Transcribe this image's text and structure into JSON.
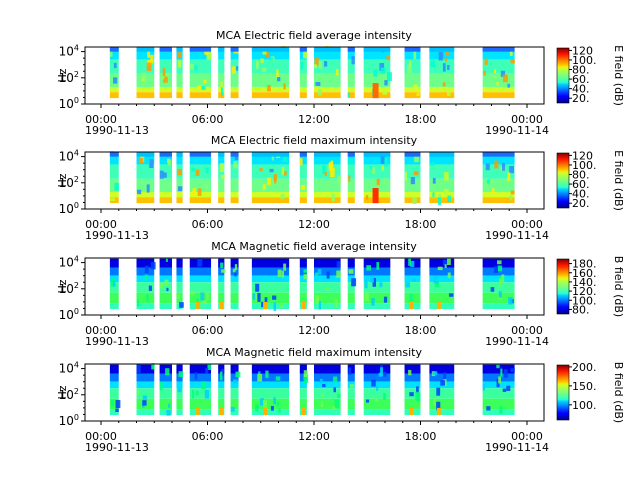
{
  "chart_data": [
    {
      "type": "heatmap",
      "title": "MCA  Electric field average intensity",
      "ylabel": "Hz",
      "y_ticks": [
        "10^0",
        "10^2",
        "10^4"
      ],
      "y_scale": "log",
      "ylim": [
        1,
        10000
      ],
      "x_ticks": [
        "00:00",
        "06:00",
        "12:00",
        "18:00",
        "00:00"
      ],
      "x_dates": [
        "1990-11-13",
        "1990-11-14"
      ],
      "colorbar_label": "E field (dB)",
      "colorbar_ticks": [
        20,
        40,
        60,
        80,
        100,
        120
      ],
      "colorbar_tick_labels": [
        "20.",
        "40.",
        "60.",
        "80.",
        "100.",
        "120"
      ],
      "colorbar_range": [
        10,
        125
      ],
      "colormap": "jet"
    },
    {
      "type": "heatmap",
      "title": "MCA  Electric field maximum intensity",
      "ylabel": "Hz",
      "y_ticks": [
        "10^0",
        "10^2",
        "10^4"
      ],
      "y_scale": "log",
      "ylim": [
        1,
        10000
      ],
      "x_ticks": [
        "00:00",
        "06:00",
        "12:00",
        "18:00",
        "00:00"
      ],
      "x_dates": [
        "1990-11-13",
        "1990-11-14"
      ],
      "colorbar_label": "E field (dB)",
      "colorbar_ticks": [
        20,
        40,
        60,
        80,
        100,
        120
      ],
      "colorbar_tick_labels": [
        "20.",
        "40.",
        "60.",
        "80.",
        "100.",
        "120"
      ],
      "colorbar_range": [
        10,
        125
      ],
      "colormap": "jet"
    },
    {
      "type": "heatmap",
      "title": "MCA  Magnetic field average intensity",
      "ylabel": "Hz",
      "y_ticks": [
        "10^0",
        "10^2",
        "10^4"
      ],
      "y_scale": "log",
      "ylim": [
        1,
        10000
      ],
      "x_ticks": [
        "00:00",
        "06:00",
        "12:00",
        "18:00",
        "00:00"
      ],
      "x_dates": [
        "1990-11-13",
        "1990-11-14"
      ],
      "colorbar_label": "B field (dB)",
      "colorbar_ticks": [
        80,
        100,
        120,
        140,
        160,
        180
      ],
      "colorbar_tick_labels": [
        "80.",
        "100.",
        "120.",
        "140.",
        "160.",
        "180."
      ],
      "colorbar_range": [
        70,
        190
      ],
      "colormap": "jet"
    },
    {
      "type": "heatmap",
      "title": "MCA  Magnetic field maximum intensity",
      "ylabel": "Hz",
      "y_ticks": [
        "10^0",
        "10^2",
        "10^4"
      ],
      "y_scale": "log",
      "ylim": [
        1,
        10000
      ],
      "x_ticks": [
        "00:00",
        "06:00",
        "12:00",
        "18:00",
        "00:00"
      ],
      "x_dates": [
        "1990-11-13",
        "1990-11-14"
      ],
      "colorbar_label": "B field (dB)",
      "colorbar_ticks": [
        100,
        150,
        200
      ],
      "colorbar_tick_labels": [
        "100.",
        "150.",
        "200."
      ],
      "colorbar_range": [
        60,
        205
      ],
      "colormap": "jet"
    }
  ]
}
